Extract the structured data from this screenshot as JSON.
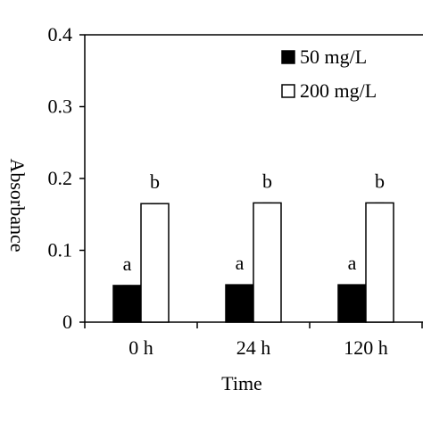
{
  "chart_data": {
    "type": "bar",
    "title": "",
    "xlabel": "Time",
    "ylabel": "Absorbance",
    "categories": [
      "0 h",
      "24 h",
      "120 h"
    ],
    "ylim": [
      0,
      0.4
    ],
    "yticks": [
      "0",
      "0.1",
      "0.2",
      "0.3",
      "0.4"
    ],
    "grid": false,
    "legend_position": "top-right",
    "series": [
      {
        "name": "50 mg/L",
        "color": "#000000",
        "values": [
          0.051,
          0.052,
          0.052
        ],
        "labels": [
          "a",
          "a",
          "a"
        ]
      },
      {
        "name": "200 mg/L",
        "color": "#ffffff",
        "values": [
          0.165,
          0.166,
          0.166
        ],
        "labels": [
          "b",
          "b",
          "b"
        ]
      }
    ]
  }
}
